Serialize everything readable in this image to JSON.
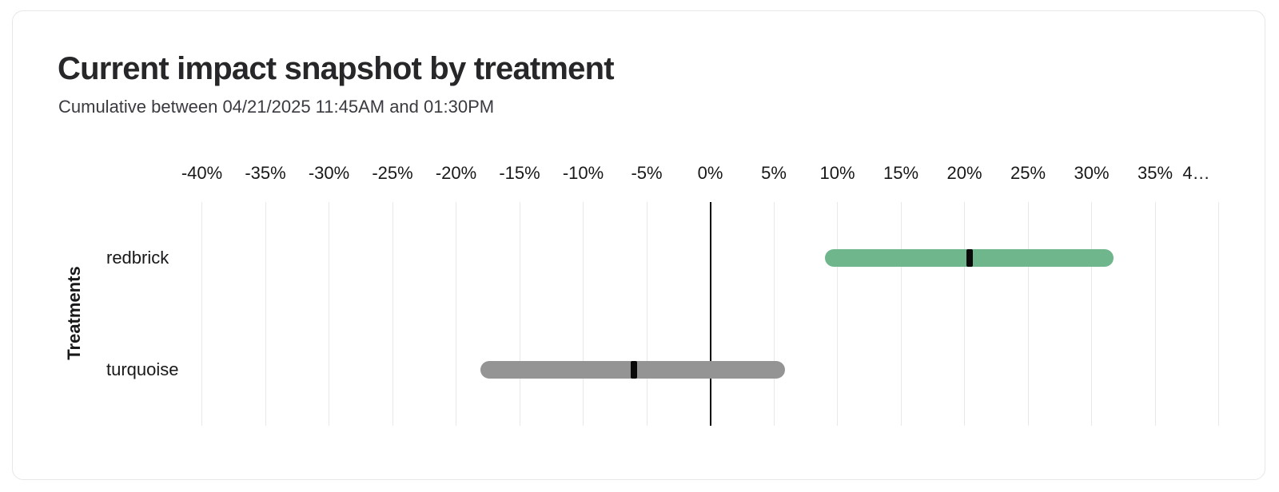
{
  "card": {
    "title": "Current impact snapshot by treatment",
    "subtitle": "Cumulative between 04/21/2025 11:45AM and 01:30PM"
  },
  "chart_data": {
    "type": "bar",
    "subtype": "horizontal-interval-bars-with-point-markers",
    "title": "Current impact snapshot by treatment",
    "subtitle": "Cumulative between 04/21/2025 11:45AM and 01:30PM",
    "xlabel": "",
    "ylabel": "Treatments",
    "x_unit": "%",
    "xlim": [
      -40,
      40
    ],
    "grid": "vertical",
    "zero_line": true,
    "legend": "none",
    "x_ticks": [
      {
        "value": -40,
        "label": "-40%"
      },
      {
        "value": -35,
        "label": "-35%"
      },
      {
        "value": -30,
        "label": "-30%"
      },
      {
        "value": -25,
        "label": "-25%"
      },
      {
        "value": -20,
        "label": "-20%"
      },
      {
        "value": -15,
        "label": "-15%"
      },
      {
        "value": -10,
        "label": "-10%"
      },
      {
        "value": -5,
        "label": "-5%"
      },
      {
        "value": 0,
        "label": "0%"
      },
      {
        "value": 5,
        "label": "5%"
      },
      {
        "value": 10,
        "label": "10%"
      },
      {
        "value": 15,
        "label": "15%"
      },
      {
        "value": 20,
        "label": "20%"
      },
      {
        "value": 25,
        "label": "25%"
      },
      {
        "value": 30,
        "label": "30%"
      },
      {
        "value": 35,
        "label": "35%"
      },
      {
        "value": 40,
        "label": "4…"
      }
    ],
    "rows": [
      {
        "label": "redbrick",
        "low": 9.0,
        "high": 31.7,
        "point": 20.4,
        "color": "#6fb68c"
      },
      {
        "label": "turquoise",
        "low": -18.1,
        "high": 5.9,
        "point": -6.0,
        "color": "#949494"
      }
    ],
    "colors": {
      "marker": "#0a0a0a",
      "grid": "#e8e8e8",
      "zero_line": "#000000",
      "positive_bar": "#6fb68c",
      "neutral_bar": "#949494"
    }
  }
}
